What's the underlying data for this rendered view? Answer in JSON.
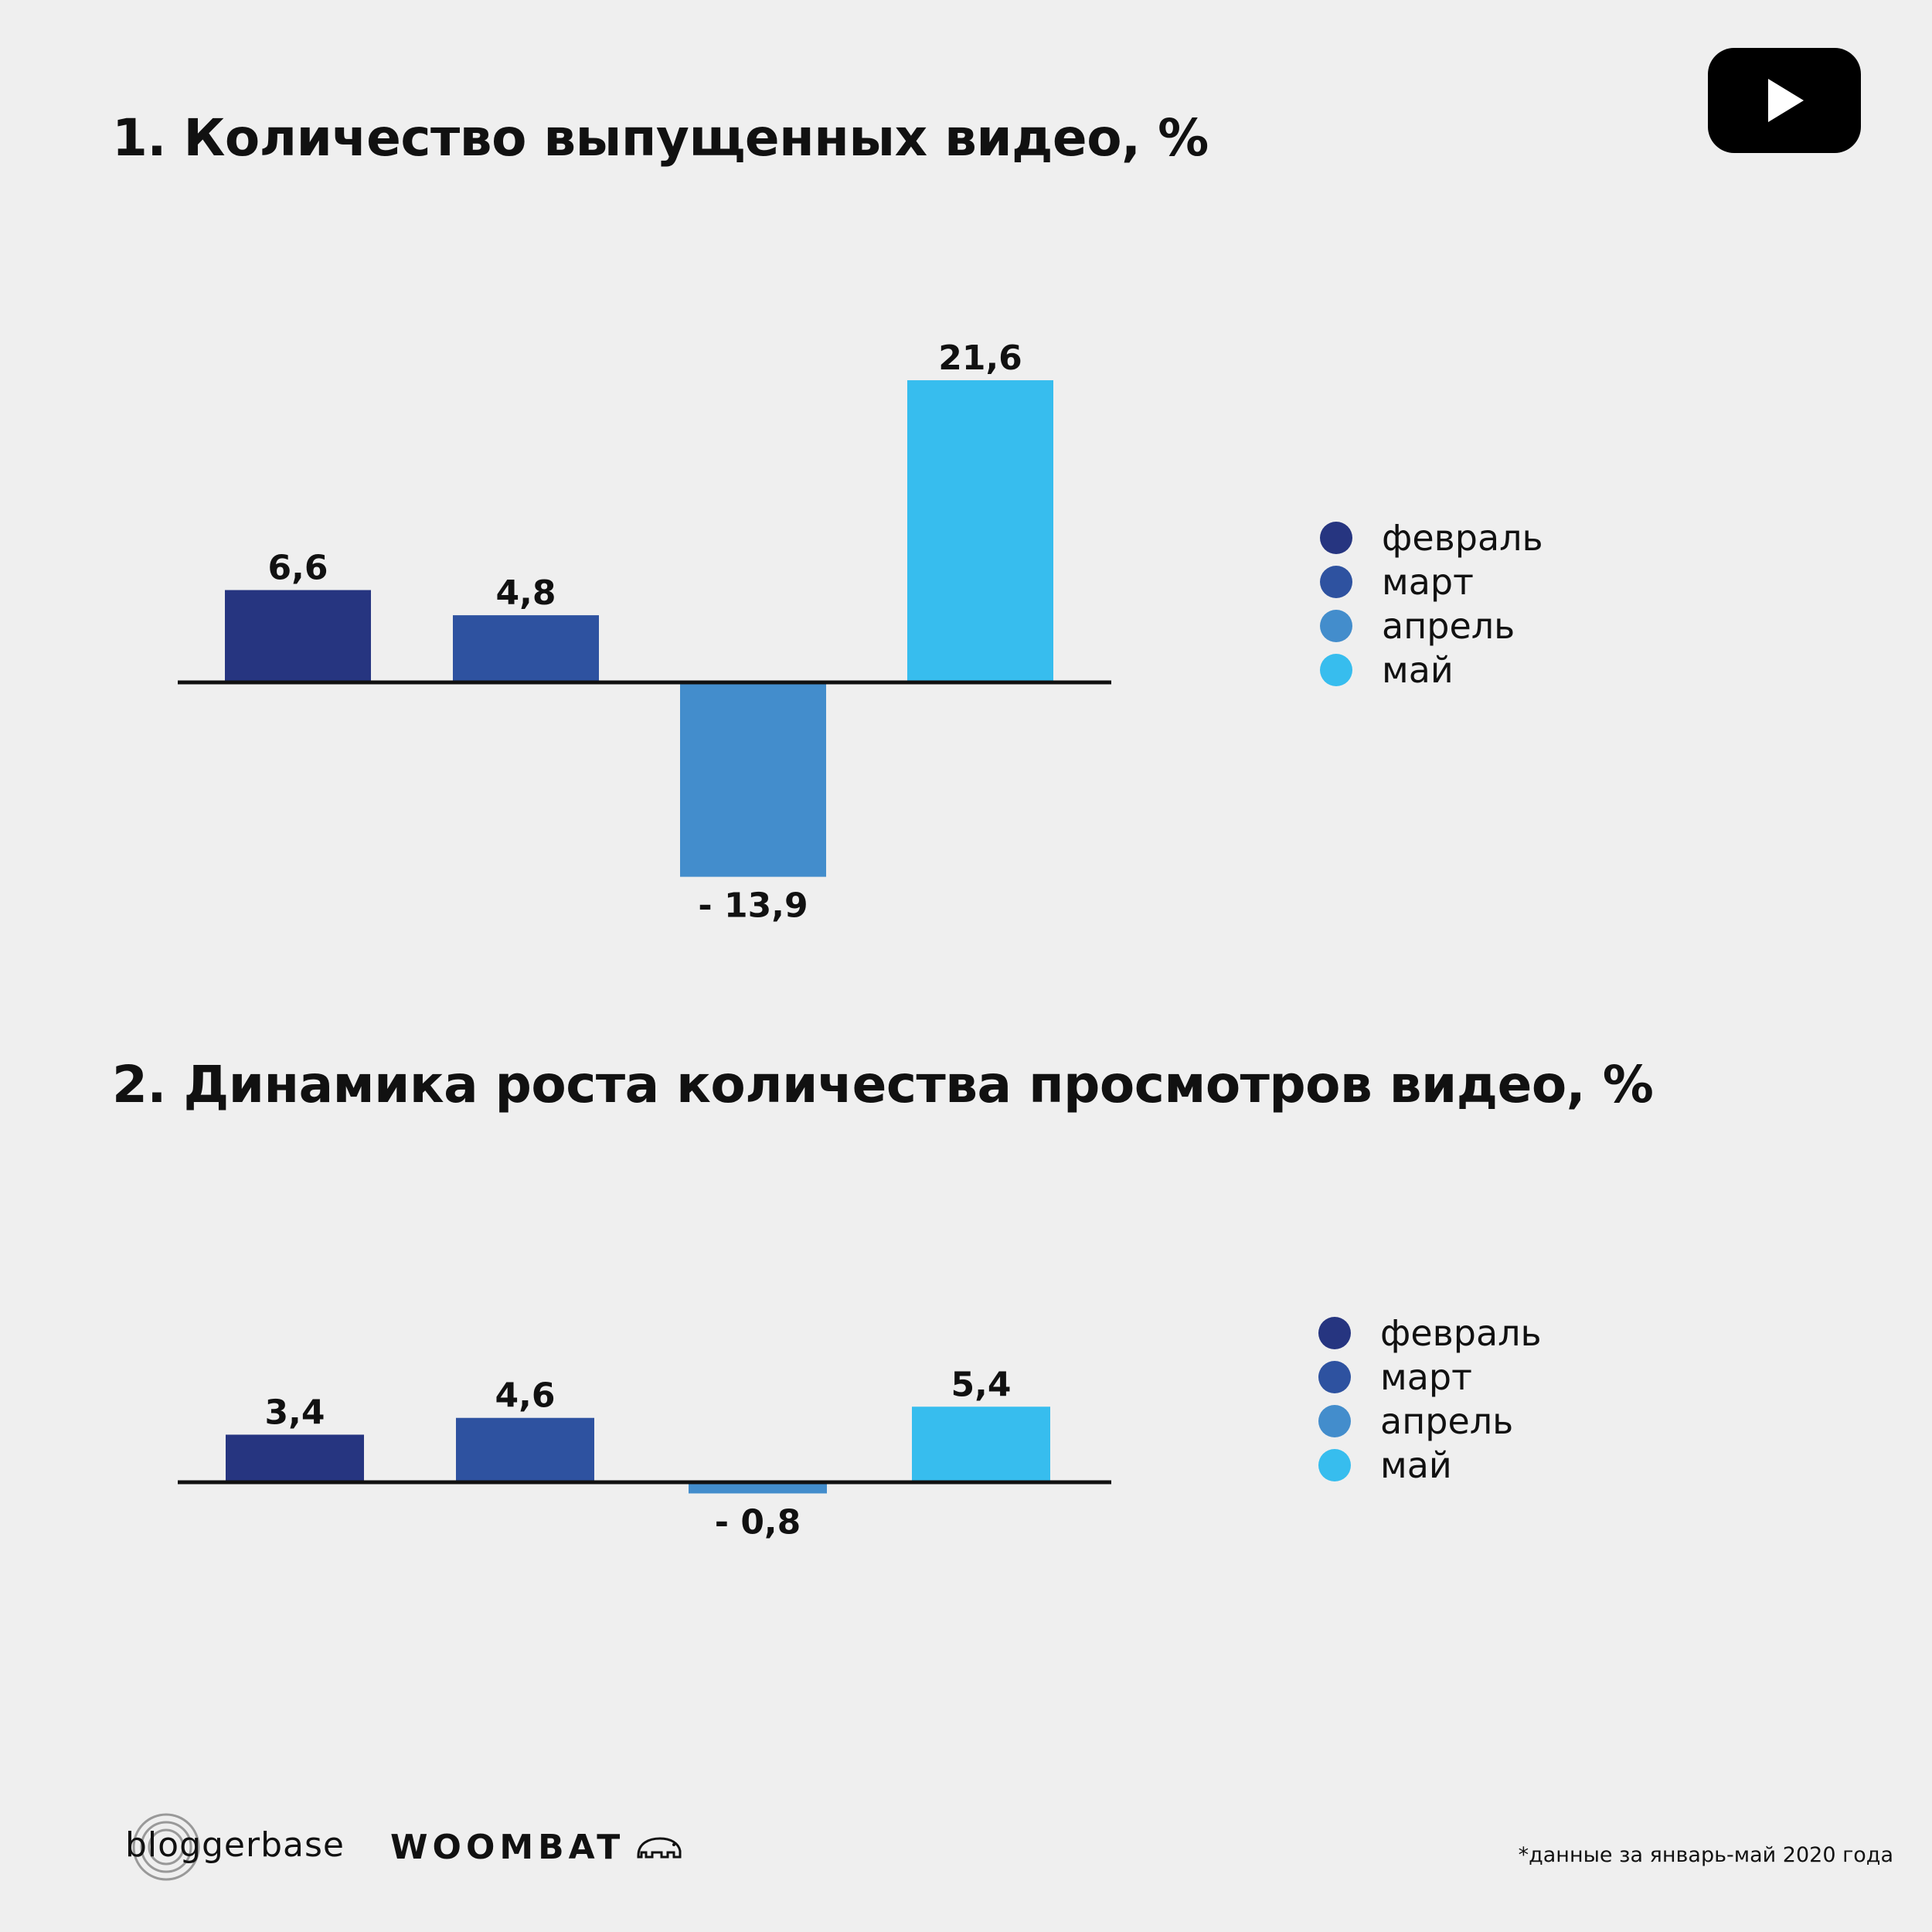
{
  "titles": {
    "chart1": "1. Количество выпущенных видео, %",
    "chart2": "2. Динамика роста количества просмотров видео, %"
  },
  "legend": [
    "февраль",
    "март",
    "апрель",
    "май"
  ],
  "colors": {
    "feb": "#263580",
    "mar": "#2e52a0",
    "apr": "#438dcc",
    "may": "#37bdee",
    "axis": "#111111",
    "background": "#efefef"
  },
  "chart_data": [
    {
      "type": "bar",
      "title": "1. Количество выпущенных видео, %",
      "categories": [
        "февраль",
        "март",
        "апрель",
        "май"
      ],
      "values": [
        6.6,
        4.8,
        -13.9,
        21.6
      ],
      "value_labels": [
        "6,6",
        "4,8",
        "- 13,9",
        "21,6"
      ],
      "xlabel": "",
      "ylabel": "",
      "grid": false,
      "legend_position": "right"
    },
    {
      "type": "bar",
      "title": "2. Динамика роста количества просмотров видео, %",
      "categories": [
        "февраль",
        "март",
        "апрель",
        "май"
      ],
      "values": [
        3.4,
        4.6,
        -0.8,
        5.4
      ],
      "value_labels": [
        "3,4",
        "4,6",
        "- 0,8",
        "5,4"
      ],
      "xlabel": "",
      "ylabel": "",
      "grid": false,
      "legend_position": "right"
    }
  ],
  "icons": {
    "top_right": "youtube-play-icon",
    "woombat": "wombat-icon"
  },
  "footer": {
    "bloggerbase": "bloggerbase",
    "woombat": "WOOMBAT",
    "footnote": "*данные за январь-май 2020 года"
  }
}
